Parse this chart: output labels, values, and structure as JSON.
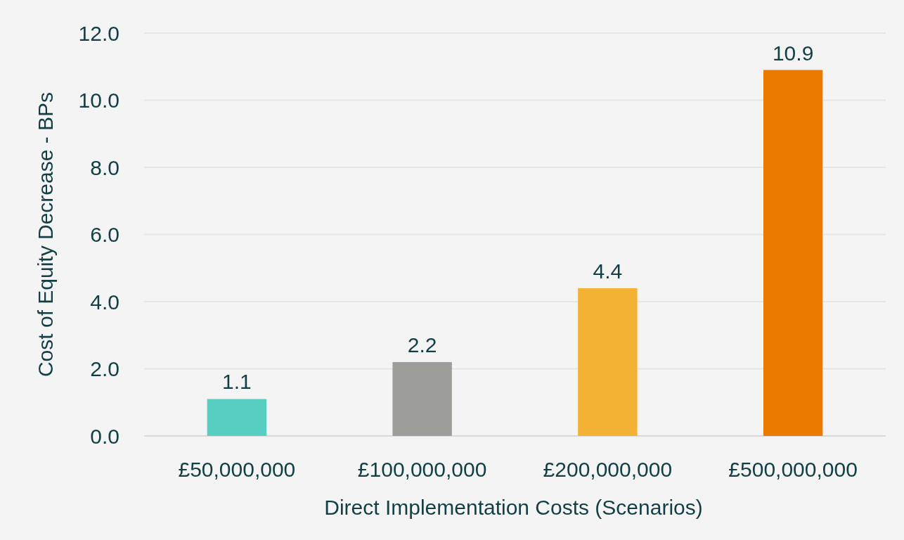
{
  "chart_data": {
    "type": "bar",
    "xlabel": "Direct Implementation Costs (Scenarios)",
    "ylabel": "Cost of Equity Decrease - BPs",
    "categories": [
      "£50,000,000",
      "£100,000,000",
      "£200,000,000",
      "£500,000,000"
    ],
    "values": [
      1.1,
      2.2,
      4.4,
      10.9
    ],
    "colors": [
      "#56cfc0",
      "#9d9d99",
      "#f3b234",
      "#eb7a00"
    ],
    "ylim": [
      0,
      12
    ],
    "yticks": [
      {
        "value": 0,
        "label": "0.0"
      },
      {
        "value": 2,
        "label": "2.0"
      },
      {
        "value": 4,
        "label": "4.0"
      },
      {
        "value": 6,
        "label": "6.0"
      },
      {
        "value": 8,
        "label": "8.0"
      },
      {
        "value": 10,
        "label": "10.0"
      },
      {
        "value": 12,
        "label": "12.0"
      }
    ],
    "grid": "y",
    "data_labels": true
  }
}
